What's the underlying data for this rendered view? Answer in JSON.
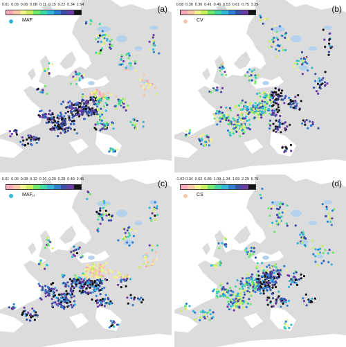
{
  "legend_colors": [
    "#f7a8b8",
    "#f7c6a8",
    "#f2f28a",
    "#c8f060",
    "#6fe86a",
    "#3fd6a8",
    "#33b6d8",
    "#2f7fd0",
    "#3a4fa6",
    "#6b3aa2",
    "#141414"
  ],
  "panels": [
    {
      "letter": "(a)",
      "variable": "MAF",
      "variable_sub": "",
      "ticks": [
        "0.01",
        "0.03",
        "0.06",
        "0.08",
        "0.11",
        "0.15",
        "0.22",
        "0.34",
        "2.54"
      ],
      "example_color": "#33b6d8"
    },
    {
      "letter": "(b)",
      "variable": "CV",
      "variable_sub": "",
      "ticks": [
        "0.08",
        "0.30",
        "0.36",
        "0.41",
        "0.46",
        "0.53",
        "0.61",
        "0.75",
        "3.25"
      ],
      "example_color": "#f7c6a8"
    },
    {
      "letter": "(c)",
      "variable": "MAF",
      "variable_sub": "H",
      "ticks": [
        "0.01",
        "0.05",
        "0.08",
        "0.12",
        "0.16",
        "0.20",
        "0.28",
        "0.40",
        "2.46"
      ],
      "example_color": "#33b6d8"
    },
    {
      "letter": "(d)",
      "variable": "CS",
      "variable_sub": "",
      "ticks": [
        "-1.02",
        "0.34",
        "0.62",
        "0.86",
        "1.09",
        "1.34",
        "1.69",
        "2.29",
        "6.75"
      ],
      "example_color": "#f7c6a8"
    }
  ],
  "map_colors": {
    "land": "#dcdcdc",
    "water": "#ffffff",
    "lakes": "#b4d2ee"
  }
}
